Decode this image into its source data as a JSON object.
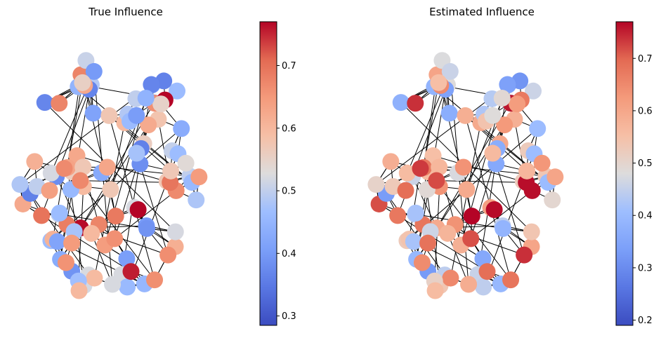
{
  "panels": [
    {
      "title": "True Influence",
      "colorbar": {
        "min": 0.285,
        "max": 0.77,
        "ticks": [
          "0.3",
          "0.4",
          "0.5",
          "0.6",
          "0.7"
        ]
      }
    },
    {
      "title": "Estimated Influence",
      "colorbar": {
        "min": 0.19,
        "max": 0.77,
        "ticks": [
          "0.2",
          "0.3",
          "0.4",
          "0.5",
          "0.6",
          "0.7"
        ]
      }
    }
  ],
  "chart_data": {
    "type": "network",
    "colormap": "coolwarm",
    "node_count": 100,
    "panels": [
      {
        "title": "True Influence",
        "value_range": [
          0.285,
          0.77
        ],
        "colorbar_ticks": [
          0.3,
          0.4,
          0.5,
          0.6,
          0.7
        ]
      },
      {
        "title": "Estimated Influence",
        "value_range": [
          0.19,
          0.77
        ],
        "colorbar_ticks": [
          0.2,
          0.3,
          0.4,
          0.5,
          0.6,
          0.7
        ]
      }
    ]
  }
}
